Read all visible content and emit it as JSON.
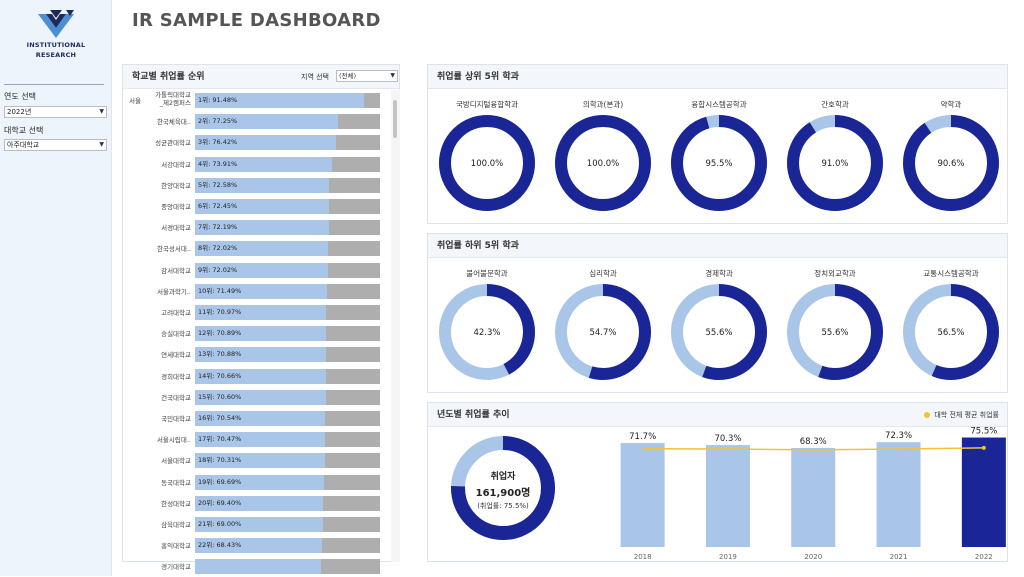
{
  "sidebar": {
    "logo_line1": "INSTITUTIONAL",
    "logo_line2": "RESEARCH",
    "year_label": "연도 선택",
    "year_value": "2022년",
    "school_label": "대학교 선택",
    "school_value": "아주대학교"
  },
  "header": {
    "title": "IR SAMPLE DASHBOARD"
  },
  "ranking": {
    "title": "학교별 취업률 순위",
    "region_label": "지역 선택",
    "region_value": "(전체)",
    "region_group": "서울",
    "rows": [
      {
        "name": "가톨릭대학교_제2캠퍼스",
        "label": "1위:  91.48%",
        "rate": 91.48
      },
      {
        "name": "한국체육대..",
        "label": "2위:  77.25%",
        "rate": 77.25
      },
      {
        "name": "성균관대학교",
        "label": "3위:  76.42%",
        "rate": 76.42
      },
      {
        "name": "서강대학교",
        "label": "4위:  73.91%",
        "rate": 73.91
      },
      {
        "name": "한양대학교",
        "label": "5위:  72.58%",
        "rate": 72.58
      },
      {
        "name": "중앙대학교",
        "label": "6위:  72.45%",
        "rate": 72.45
      },
      {
        "name": "서경대학교",
        "label": "7위:  72.19%",
        "rate": 72.19
      },
      {
        "name": "한국성서대..",
        "label": "8위:  72.02%",
        "rate": 72.02
      },
      {
        "name": "감서대학교",
        "label": "9위:  72.02%",
        "rate": 72.02
      },
      {
        "name": "서울과학기..",
        "label": "10위:  71.49%",
        "rate": 71.49
      },
      {
        "name": "고려대학교",
        "label": "11위:  70.97%",
        "rate": 70.97
      },
      {
        "name": "숭실대학교",
        "label": "12위:  70.89%",
        "rate": 70.89
      },
      {
        "name": "연세대학교",
        "label": "13위:  70.88%",
        "rate": 70.88
      },
      {
        "name": "경희대학교",
        "label": "14위:  70.66%",
        "rate": 70.66
      },
      {
        "name": "건국대학교",
        "label": "15위:  70.60%",
        "rate": 70.6
      },
      {
        "name": "국민대학교",
        "label": "16위:  70.54%",
        "rate": 70.54
      },
      {
        "name": "서울시립대..",
        "label": "17위:  70.47%",
        "rate": 70.47
      },
      {
        "name": "서울대학교",
        "label": "18위:  70.31%",
        "rate": 70.31
      },
      {
        "name": "동국대학교",
        "label": "19위:  69.69%",
        "rate": 69.69
      },
      {
        "name": "한성대학교",
        "label": "20위:  69.40%",
        "rate": 69.4
      },
      {
        "name": "삼육대학교",
        "label": "21위:  69.00%",
        "rate": 69.0
      },
      {
        "name": "홍익대학교",
        "label": "22위:  68.43%",
        "rate": 68.43
      },
      {
        "name": "경기대학교",
        "label": "",
        "rate": 68.0
      }
    ]
  },
  "top5": {
    "title": "취업률 상위 5위 학과",
    "items": [
      {
        "name": "국방디지털융합학과",
        "value": 100.0,
        "label": "100.0%"
      },
      {
        "name": "의학과(본과)",
        "value": 100.0,
        "label": "100.0%"
      },
      {
        "name": "융합시스템공학과",
        "value": 95.5,
        "label": "95.5%"
      },
      {
        "name": "간호학과",
        "value": 91.0,
        "label": "91.0%"
      },
      {
        "name": "약학과",
        "value": 90.6,
        "label": "90.6%"
      }
    ]
  },
  "bottom5": {
    "title": "취업률 하위 5위 학과",
    "items": [
      {
        "name": "불어불문학과",
        "value": 42.3,
        "label": "42.3%"
      },
      {
        "name": "심리학과",
        "value": 54.7,
        "label": "54.7%"
      },
      {
        "name": "경제학과",
        "value": 55.6,
        "label": "55.6%"
      },
      {
        "name": "정치외교학과",
        "value": 55.6,
        "label": "55.6%"
      },
      {
        "name": "교통시스템공학과",
        "value": 56.5,
        "label": "56.5%"
      }
    ]
  },
  "trend": {
    "title": "년도별 취업률 추이",
    "legend": "대학 전체 평균 취업률",
    "emp_label": "취업자",
    "emp_count": "161,900명",
    "emp_rate": "(취업률: 75.5%)",
    "emp_ratio": 0.755
  },
  "colors": {
    "dark_blue": "#1a2596",
    "light_blue": "#a9c6e9",
    "gray": "#aeaeae",
    "avg_line": "#f2c230"
  },
  "chart_data": {
    "type": "bar",
    "title": "년도별 취업률 추이",
    "categories": [
      "2018",
      "2019",
      "2020",
      "2021",
      "2022"
    ],
    "series": [
      {
        "values": [
          71.7,
          70.3,
          68.3,
          72.3,
          75.5
        ],
        "labels": [
          "71.7%",
          "70.3%",
          "68.3%",
          "72.3%",
          "75.5%"
        ]
      },
      {
        "name": "대학 전체 평균 취업률",
        "type": "line",
        "values": [
          67.8,
          67.6,
          67.0,
          67.6,
          68.4
        ]
      }
    ],
    "highlight_category": "2022",
    "ylim": [
      0,
      80
    ],
    "xlabel": "",
    "ylabel": "",
    "legend": "top-right"
  }
}
